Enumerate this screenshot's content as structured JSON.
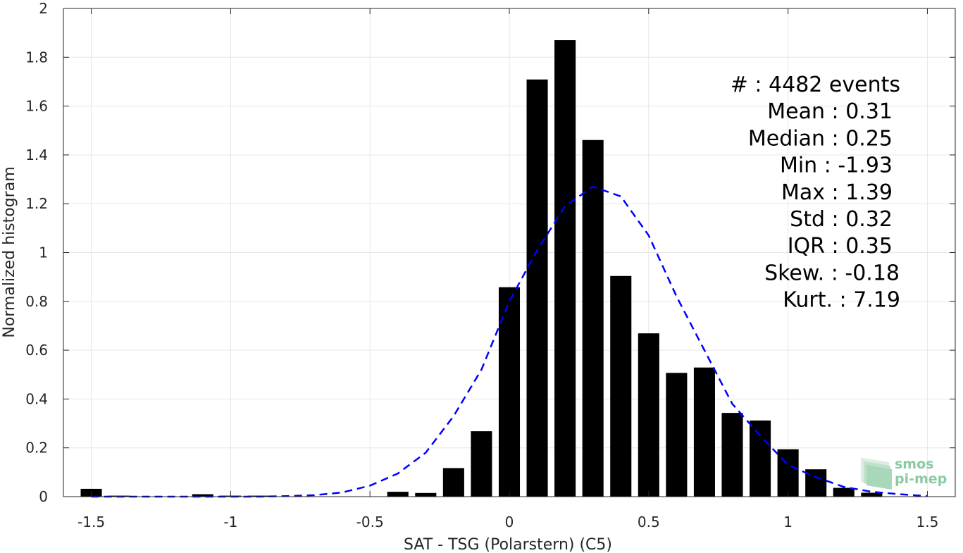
{
  "chart_data": {
    "type": "bar",
    "xlabel": "SAT - TSG (Polarstern) (C5)",
    "ylabel": "Normalized histogram",
    "xlim": [
      -1.6,
      1.6
    ],
    "ylim": [
      0,
      2
    ],
    "x_ticks": [
      -1.5,
      -1,
      -0.5,
      0,
      0.5,
      1,
      1.5
    ],
    "x_tick_labels": [
      "-1.5",
      "-1",
      "-0.5",
      "0",
      "0.5",
      "1",
      "1.5"
    ],
    "y_ticks": [
      0,
      0.2,
      0.4,
      0.6,
      0.8,
      1,
      1.2,
      1.4,
      1.6,
      1.8,
      2
    ],
    "y_tick_labels": [
      "0",
      "0.2",
      "0.4",
      "0.6",
      "0.8",
      "1",
      "1.2",
      "1.4",
      "1.6",
      "1.8",
      "2"
    ],
    "grid": true,
    "bin_width": 0.1,
    "bars": {
      "name": "",
      "color": "#000000",
      "x": [
        -1.5,
        -1.4,
        -1.3,
        -1.2,
        -1.1,
        -1.0,
        -0.9,
        -0.8,
        -0.7,
        -0.6,
        -0.5,
        -0.4,
        -0.3,
        -0.2,
        -0.1,
        0.0,
        0.1,
        0.2,
        0.3,
        0.4,
        0.5,
        0.6,
        0.7,
        0.8,
        0.9,
        1.0,
        1.1,
        1.2,
        1.3
      ],
      "values": [
        0.032,
        0.004,
        0.0,
        0.0,
        0.01,
        0.004,
        0.004,
        0.0,
        0.0,
        0.0,
        0.0,
        0.02,
        0.015,
        0.117,
        0.268,
        0.858,
        1.709,
        1.87,
        1.461,
        0.904,
        0.669,
        0.507,
        0.529,
        0.343,
        0.312,
        0.194,
        0.112,
        0.036,
        0.016
      ]
    },
    "fit": {
      "name": "",
      "color": "#0000ff",
      "style": "dashed",
      "x": [
        -1.5,
        -1.4,
        -1.3,
        -1.2,
        -1.1,
        -1.0,
        -0.9,
        -0.8,
        -0.7,
        -0.6,
        -0.5,
        -0.4,
        -0.3,
        -0.2,
        -0.1,
        0.0,
        0.1,
        0.2,
        0.3,
        0.4,
        0.5,
        0.6,
        0.7,
        0.8,
        0.9,
        1.0,
        1.1,
        1.2,
        1.3,
        1.4,
        1.5
      ],
      "values": [
        0.0,
        0.0,
        0.0,
        0.0,
        0.0,
        0.0,
        0.0,
        0.002,
        0.006,
        0.017,
        0.045,
        0.095,
        0.18,
        0.33,
        0.52,
        0.8,
        1.01,
        1.19,
        1.27,
        1.23,
        1.07,
        0.82,
        0.6,
        0.38,
        0.25,
        0.13,
        0.08,
        0.04,
        0.02,
        0.01,
        0.002
      ]
    },
    "stats": {
      "lines": [
        "#  : 4482 events",
        "Mean : 0.31",
        "Median : 0.25",
        "Min : -1.93",
        "Max : 1.39",
        "Std : 0.32",
        "IQR : 0.35",
        "Skew. : -0.18",
        "Kurt. : 7.19"
      ]
    }
  },
  "logo": {
    "line1": "smos",
    "line2": "pi-mep",
    "color": "#8ccaa2"
  }
}
